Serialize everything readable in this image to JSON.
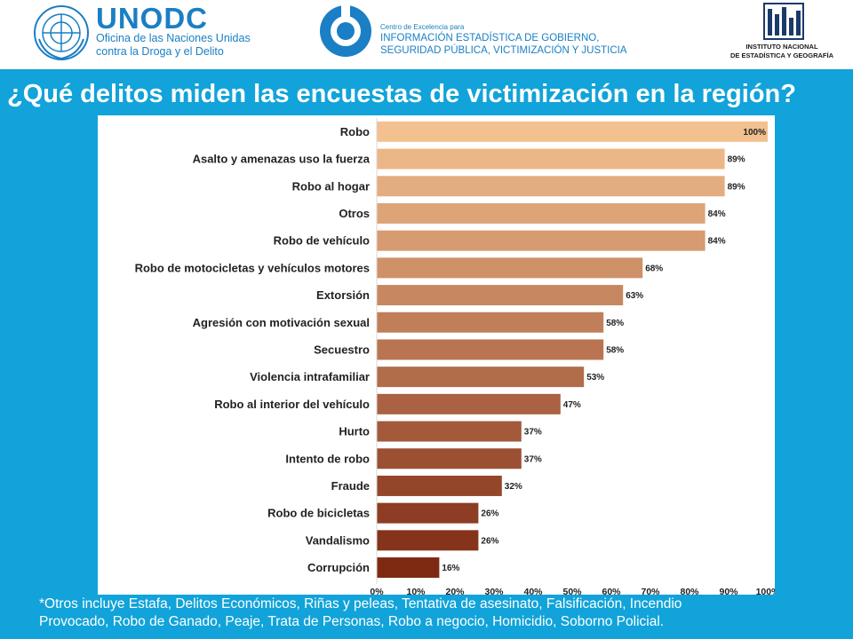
{
  "header": {
    "unodc_logo_icon": "un-emblem-icon",
    "unodc_name": "UNODC",
    "unodc_subtitle_line1": "Oficina de las Naciones Unidas",
    "unodc_subtitle_line2": "contra la Droga y el Delito",
    "center_logo_icon": "centro-excelencia-logo-icon",
    "center_small": "Centro de Excelencia para",
    "center_line1": "INFORMACIÓN ESTADÍSTICA DE GOBIERNO,",
    "center_line2": "SEGURIDAD PÚBLICA, VICTIMIZACIÓN Y JUSTICIA",
    "inegi_logo_icon": "inegi-logo-icon",
    "inegi_line1": "INSTITUTO NACIONAL",
    "inegi_line2": "DE ESTADÍSTICA Y GEOGRAFÍA"
  },
  "title": "¿Qué delitos miden las encuestas de victimización en la región?",
  "colors": {
    "band": "#11a3d9",
    "bar_light": "#f3c08f",
    "bar_dark": "#7e2a13"
  },
  "chart_data": {
    "type": "bar",
    "orientation": "horizontal",
    "categories": [
      "Robo",
      "Asalto y amenazas uso la fuerza",
      "Robo al hogar",
      "Otros",
      "Robo de vehículo",
      "Robo de motocicletas y vehículos motores",
      "Extorsión",
      "Agresión con motivación sexual",
      "Secuestro",
      "Violencia intrafamiliar",
      "Robo al interior del vehículo",
      "Hurto",
      "Intento de robo",
      "Fraude",
      "Robo de bicicletas",
      "Vandalismo",
      "Corrupción"
    ],
    "values": [
      100,
      89,
      89,
      84,
      84,
      68,
      63,
      58,
      58,
      53,
      47,
      37,
      37,
      32,
      26,
      26,
      16
    ],
    "value_labels": [
      "100%",
      "89%",
      "89%",
      "84%",
      "84%",
      "68%",
      "63%",
      "58%",
      "58%",
      "53%",
      "47%",
      "37%",
      "37%",
      "32%",
      "26%",
      "26%",
      "16%"
    ],
    "xlim": [
      0,
      100
    ],
    "xticks": [
      0,
      10,
      20,
      30,
      40,
      50,
      60,
      70,
      80,
      90,
      100
    ],
    "xtick_labels": [
      "0%",
      "10%",
      "20%",
      "30%",
      "40%",
      "50%",
      "60%",
      "70%",
      "80%",
      "90%",
      "100%"
    ],
    "title": "",
    "xlabel": "",
    "ylabel": "",
    "grid": false,
    "legend": "none"
  },
  "footnote_line1": "*Otros incluye Estafa, Delitos Económicos, Riñas y peleas, Tentativa de asesinato, Falsificación, Incendio",
  "footnote_line2": "Provocado, Robo de Ganado, Peaje, Trata de Personas, Robo a negocio, Homicidio, Soborno Policial."
}
